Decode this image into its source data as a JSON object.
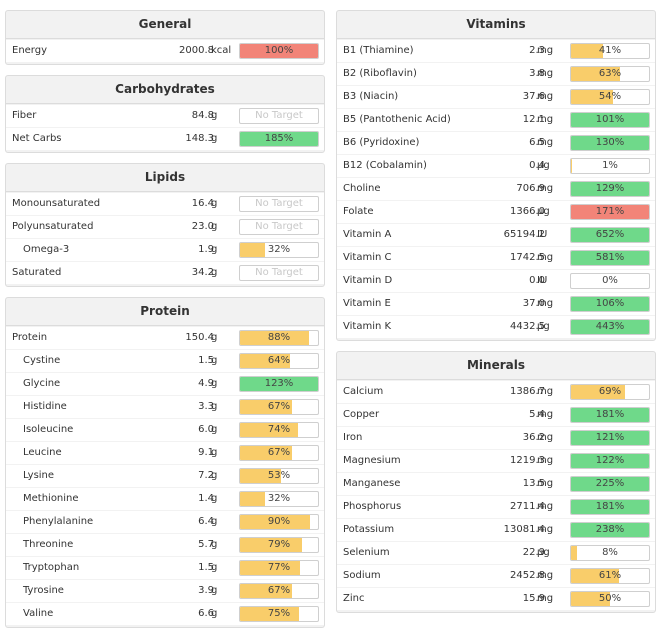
{
  "colors": {
    "low": "#f9cd6a",
    "good": "#6fd98a",
    "over": "#f28478",
    "none": "#ffffff"
  },
  "left_panels": [
    {
      "id": "general",
      "title": "General",
      "rows": [
        {
          "name": "Energy",
          "amount": "2000.8",
          "unit": "kcal",
          "percent_text": "100%",
          "fill": 100,
          "status": "over"
        }
      ]
    },
    {
      "id": "carbohydrates",
      "title": "Carbohydrates",
      "rows": [
        {
          "name": "Fiber",
          "amount": "84.8",
          "unit": "g",
          "percent_text": "No Target",
          "fill": 0,
          "status": "none"
        },
        {
          "name": "Net Carbs",
          "amount": "148.3",
          "unit": "g",
          "percent_text": "185%",
          "fill": 100,
          "status": "good"
        }
      ]
    },
    {
      "id": "lipids",
      "title": "Lipids",
      "rows": [
        {
          "name": "Monounsaturated",
          "amount": "16.4",
          "unit": "g",
          "percent_text": "No Target",
          "fill": 0,
          "status": "none"
        },
        {
          "name": "Polyunsaturated",
          "amount": "23.0",
          "unit": "g",
          "percent_text": "No Target",
          "fill": 0,
          "status": "none"
        },
        {
          "name": "Omega-3",
          "amount": "1.9",
          "unit": "g",
          "percent_text": "32%",
          "fill": 32,
          "status": "low",
          "indent": true
        },
        {
          "name": "Saturated",
          "amount": "34.2",
          "unit": "g",
          "percent_text": "No Target",
          "fill": 0,
          "status": "none"
        }
      ]
    },
    {
      "id": "protein",
      "title": "Protein",
      "rows": [
        {
          "name": "Protein",
          "amount": "150.4",
          "unit": "g",
          "percent_text": "88%",
          "fill": 88,
          "status": "low"
        },
        {
          "name": "Cystine",
          "amount": "1.5",
          "unit": "g",
          "percent_text": "64%",
          "fill": 64,
          "status": "low",
          "indent": true
        },
        {
          "name": "Glycine",
          "amount": "4.9",
          "unit": "g",
          "percent_text": "123%",
          "fill": 100,
          "status": "good",
          "indent": true
        },
        {
          "name": "Histidine",
          "amount": "3.3",
          "unit": "g",
          "percent_text": "67%",
          "fill": 67,
          "status": "low",
          "indent": true
        },
        {
          "name": "Isoleucine",
          "amount": "6.0",
          "unit": "g",
          "percent_text": "74%",
          "fill": 74,
          "status": "low",
          "indent": true
        },
        {
          "name": "Leucine",
          "amount": "9.1",
          "unit": "g",
          "percent_text": "67%",
          "fill": 67,
          "status": "low",
          "indent": true
        },
        {
          "name": "Lysine",
          "amount": "7.2",
          "unit": "g",
          "percent_text": "53%",
          "fill": 53,
          "status": "low",
          "indent": true
        },
        {
          "name": "Methionine",
          "amount": "1.4",
          "unit": "g",
          "percent_text": "32%",
          "fill": 32,
          "status": "low",
          "indent": true
        },
        {
          "name": "Phenylalanine",
          "amount": "6.4",
          "unit": "g",
          "percent_text": "90%",
          "fill": 90,
          "status": "low",
          "indent": true
        },
        {
          "name": "Threonine",
          "amount": "5.7",
          "unit": "g",
          "percent_text": "79%",
          "fill": 79,
          "status": "low",
          "indent": true
        },
        {
          "name": "Tryptophan",
          "amount": "1.5",
          "unit": "g",
          "percent_text": "77%",
          "fill": 77,
          "status": "low",
          "indent": true
        },
        {
          "name": "Tyrosine",
          "amount": "3.9",
          "unit": "g",
          "percent_text": "67%",
          "fill": 67,
          "status": "low",
          "indent": true
        },
        {
          "name": "Valine",
          "amount": "6.6",
          "unit": "g",
          "percent_text": "75%",
          "fill": 75,
          "status": "low",
          "indent": true
        }
      ]
    }
  ],
  "right_panels": [
    {
      "id": "vitamins",
      "title": "Vitamins",
      "rows": [
        {
          "name": "B1 (Thiamine)",
          "amount": "2.3",
          "unit": "mg",
          "percent_text": "41%",
          "fill": 41,
          "status": "low"
        },
        {
          "name": "B2 (Riboflavin)",
          "amount": "3.8",
          "unit": "mg",
          "percent_text": "63%",
          "fill": 63,
          "status": "low"
        },
        {
          "name": "B3 (Niacin)",
          "amount": "37.6",
          "unit": "mg",
          "percent_text": "54%",
          "fill": 54,
          "status": "low"
        },
        {
          "name": "B5 (Pantothenic Acid)",
          "amount": "12.1",
          "unit": "mg",
          "percent_text": "101%",
          "fill": 100,
          "status": "good"
        },
        {
          "name": "B6 (Pyridoxine)",
          "amount": "6.5",
          "unit": "mg",
          "percent_text": "130%",
          "fill": 100,
          "status": "good"
        },
        {
          "name": "B12 (Cobalamin)",
          "amount": "0.4",
          "unit": "µg",
          "percent_text": "1%",
          "fill": 1,
          "status": "low"
        },
        {
          "name": "Choline",
          "amount": "706.9",
          "unit": "mg",
          "percent_text": "129%",
          "fill": 100,
          "status": "good"
        },
        {
          "name": "Folate",
          "amount": "1366.0",
          "unit": "µg",
          "percent_text": "171%",
          "fill": 100,
          "status": "over"
        },
        {
          "name": "Vitamin A",
          "amount": "65194.2",
          "unit": "IU",
          "percent_text": "652%",
          "fill": 100,
          "status": "good"
        },
        {
          "name": "Vitamin C",
          "amount": "1742.5",
          "unit": "mg",
          "percent_text": "581%",
          "fill": 100,
          "status": "good"
        },
        {
          "name": "Vitamin D",
          "amount": "0.0",
          "unit": "IU",
          "percent_text": "0%",
          "fill": 0,
          "status": "low"
        },
        {
          "name": "Vitamin E",
          "amount": "37.0",
          "unit": "mg",
          "percent_text": "106%",
          "fill": 100,
          "status": "good"
        },
        {
          "name": "Vitamin K",
          "amount": "4432.5",
          "unit": "µg",
          "percent_text": "443%",
          "fill": 100,
          "status": "good"
        }
      ]
    },
    {
      "id": "minerals",
      "title": "Minerals",
      "rows": [
        {
          "name": "Calcium",
          "amount": "1386.7",
          "unit": "mg",
          "percent_text": "69%",
          "fill": 69,
          "status": "low"
        },
        {
          "name": "Copper",
          "amount": "5.4",
          "unit": "mg",
          "percent_text": "181%",
          "fill": 100,
          "status": "good"
        },
        {
          "name": "Iron",
          "amount": "36.2",
          "unit": "mg",
          "percent_text": "121%",
          "fill": 100,
          "status": "good"
        },
        {
          "name": "Magnesium",
          "amount": "1219.3",
          "unit": "mg",
          "percent_text": "122%",
          "fill": 100,
          "status": "good"
        },
        {
          "name": "Manganese",
          "amount": "13.5",
          "unit": "mg",
          "percent_text": "225%",
          "fill": 100,
          "status": "good"
        },
        {
          "name": "Phosphorus",
          "amount": "2711.4",
          "unit": "mg",
          "percent_text": "181%",
          "fill": 100,
          "status": "good"
        },
        {
          "name": "Potassium",
          "amount": "13081.4",
          "unit": "mg",
          "percent_text": "238%",
          "fill": 100,
          "status": "good"
        },
        {
          "name": "Selenium",
          "amount": "22.9",
          "unit": "µg",
          "percent_text": "8%",
          "fill": 8,
          "status": "low"
        },
        {
          "name": "Sodium",
          "amount": "2452.8",
          "unit": "mg",
          "percent_text": "61%",
          "fill": 61,
          "status": "low"
        },
        {
          "name": "Zinc",
          "amount": "15.9",
          "unit": "mg",
          "percent_text": "50%",
          "fill": 50,
          "status": "low"
        }
      ]
    }
  ]
}
